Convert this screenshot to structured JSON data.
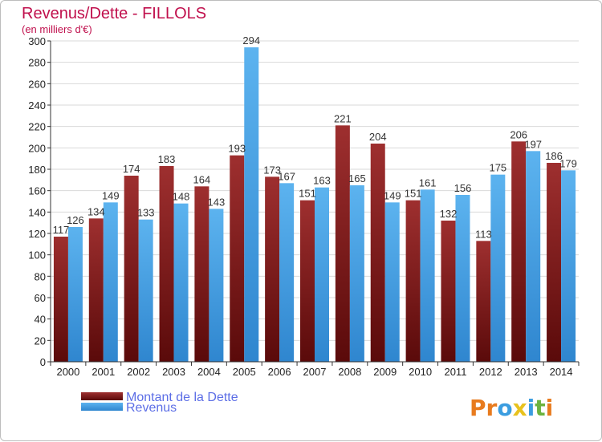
{
  "chart_data": {
    "type": "bar",
    "title": "Revenus/Dette - FILLOLS",
    "subtitle": "(en milliers d'€)",
    "xlabel": "",
    "ylabel": "",
    "ylim": [
      0,
      300
    ],
    "ytick_step": 20,
    "grid": true,
    "categories": [
      "2000",
      "2001",
      "2002",
      "2003",
      "2004",
      "2005",
      "2006",
      "2007",
      "2008",
      "2009",
      "2010",
      "2011",
      "2012",
      "2013",
      "2014"
    ],
    "series": [
      {
        "name": "Montant de la Dette",
        "color": "#8b1a1a",
        "values": [
          117,
          134,
          174,
          183,
          164,
          193,
          173,
          151,
          221,
          204,
          151,
          132,
          113,
          206,
          186
        ]
      },
      {
        "name": "Revenus",
        "color": "#4aa3e8",
        "values": [
          126,
          149,
          133,
          148,
          143,
          294,
          167,
          163,
          165,
          149,
          161,
          156,
          175,
          197,
          179
        ]
      }
    ],
    "legend": [
      "Montant de la Dette",
      "Revenus"
    ],
    "legend_position": "bottom-left"
  },
  "logo": {
    "text": "Proxiti",
    "letters": [
      "P",
      "r",
      "o",
      "x",
      "i",
      "t",
      "i"
    ]
  }
}
